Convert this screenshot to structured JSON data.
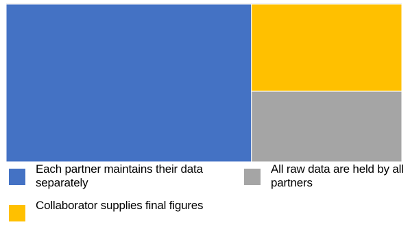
{
  "chart_data": {
    "type": "treemap",
    "title": "",
    "legend_position": "bottom",
    "items": [
      {
        "name": "Each partner maintains their data separately",
        "value": 62,
        "color": "#4472C4"
      },
      {
        "name": "Collaborator supplies final figures",
        "value": 21,
        "color": "#FFC000"
      },
      {
        "name": "All raw data are held by all partners",
        "value": 17,
        "color": "#A5A5A5"
      }
    ]
  }
}
